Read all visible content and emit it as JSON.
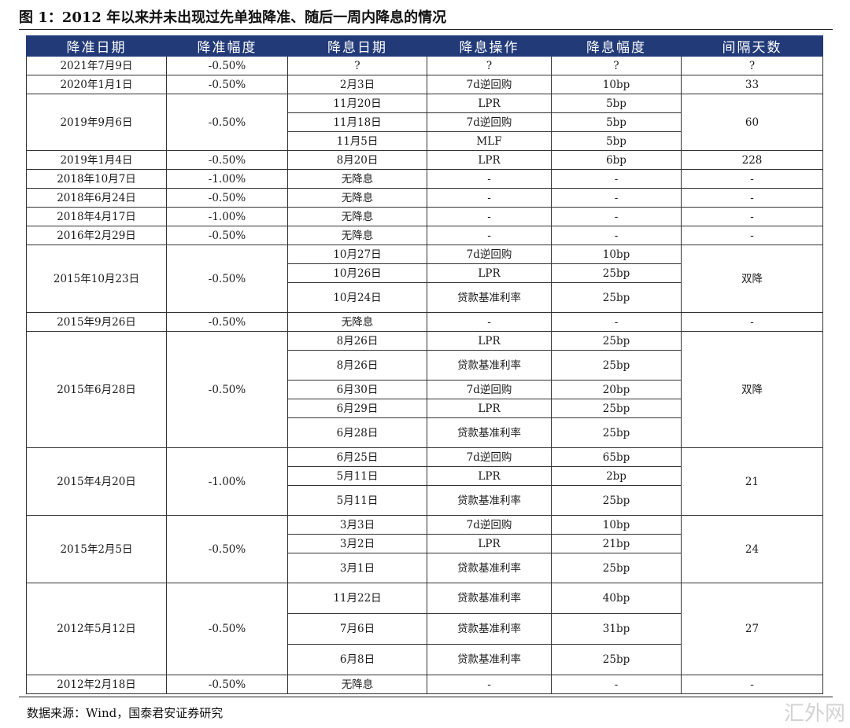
{
  "title": "图 1：2012 年以来并未出现过先单独降准、随后一周内降息的情况",
  "headers": [
    "降准日期",
    "降准幅度",
    "降息日期",
    "降息操作",
    "降息幅度",
    "间隔天数"
  ],
  "groups": [
    {
      "date": "2021年7月9日",
      "size": "-0.50%",
      "interval": "?",
      "rows": [
        [
          "?",
          "?",
          "?"
        ]
      ]
    },
    {
      "date": "2020年1月1日",
      "size": "-0.50%",
      "interval": "33",
      "rows": [
        [
          "2月3日",
          "7d逆回购",
          "10bp"
        ]
      ]
    },
    {
      "date": "2019年9月6日",
      "size": "-0.50%",
      "interval": "60",
      "rows": [
        [
          "11月20日",
          "LPR",
          "5bp"
        ],
        [
          "11月18日",
          "7d逆回购",
          "5bp"
        ],
        [
          "11月5日",
          "MLF",
          "5bp"
        ]
      ]
    },
    {
      "date": "2019年1月4日",
      "size": "-0.50%",
      "interval": "228",
      "rows": [
        [
          "8月20日",
          "LPR",
          "6bp"
        ]
      ]
    },
    {
      "date": "2018年10月7日",
      "size": "-1.00%",
      "interval": "-",
      "rows": [
        [
          "无降息",
          "-",
          "-"
        ]
      ]
    },
    {
      "date": "2018年6月24日",
      "size": "-0.50%",
      "interval": "-",
      "rows": [
        [
          "无降息",
          "-",
          "-"
        ]
      ]
    },
    {
      "date": "2018年4月17日",
      "size": "-1.00%",
      "interval": "-",
      "rows": [
        [
          "无降息",
          "-",
          "-"
        ]
      ]
    },
    {
      "date": "2016年2月29日",
      "size": "-0.50%",
      "interval": "-",
      "rows": [
        [
          "无降息",
          "-",
          "-"
        ]
      ]
    },
    {
      "date": "2015年10月23日",
      "size": "-0.50%",
      "interval": "双降",
      "rows": [
        [
          "10月27日",
          "7d逆回购",
          "10bp"
        ],
        [
          "10月26日",
          "LPR",
          "25bp"
        ],
        [
          "10月24日",
          "贷款基准利率",
          "25bp"
        ]
      ]
    },
    {
      "date": "2015年9月26日",
      "size": "-0.50%",
      "interval": "-",
      "rows": [
        [
          "无降息",
          "-",
          "-"
        ]
      ]
    },
    {
      "date": "2015年6月28日",
      "size": "-0.50%",
      "interval": "双降",
      "rows": [
        [
          "8月26日",
          "LPR",
          "25bp"
        ],
        [
          "8月26日",
          "贷款基准利率",
          "25bp"
        ],
        [
          "6月30日",
          "7d逆回购",
          "20bp"
        ],
        [
          "6月29日",
          "LPR",
          "25bp"
        ],
        [
          "6月28日",
          "贷款基准利率",
          "25bp"
        ]
      ]
    },
    {
      "date": "2015年4月20日",
      "size": "-1.00%",
      "interval": "21",
      "rows": [
        [
          "6月25日",
          "7d逆回购",
          "65bp"
        ],
        [
          "5月11日",
          "LPR",
          "2bp"
        ],
        [
          "5月11日",
          "贷款基准利率",
          "25bp"
        ]
      ]
    },
    {
      "date": "2015年2月5日",
      "size": "-0.50%",
      "interval": "24",
      "rows": [
        [
          "3月3日",
          "7d逆回购",
          "10bp"
        ],
        [
          "3月2日",
          "LPR",
          "21bp"
        ],
        [
          "3月1日",
          "贷款基准利率",
          "25bp"
        ]
      ]
    },
    {
      "date": "2012年5月12日",
      "size": "-0.50%",
      "interval": "27",
      "rows": [
        [
          "11月22日",
          "贷款基准利率",
          "40bp"
        ],
        [
          "7月6日",
          "贷款基准利率",
          "31bp"
        ],
        [
          "6月8日",
          "贷款基准利率",
          "25bp"
        ]
      ]
    },
    {
      "date": "2012年2月18日",
      "size": "-0.50%",
      "interval": "-",
      "rows": [
        [
          "无降息",
          "-",
          "-"
        ]
      ]
    }
  ],
  "source": "数据来源：Wind，国泰君安证券研究",
  "watermark": "汇外网",
  "colors": {
    "header_bg": "#223a78",
    "header_text": "#ffffff",
    "border": "#333333"
  }
}
